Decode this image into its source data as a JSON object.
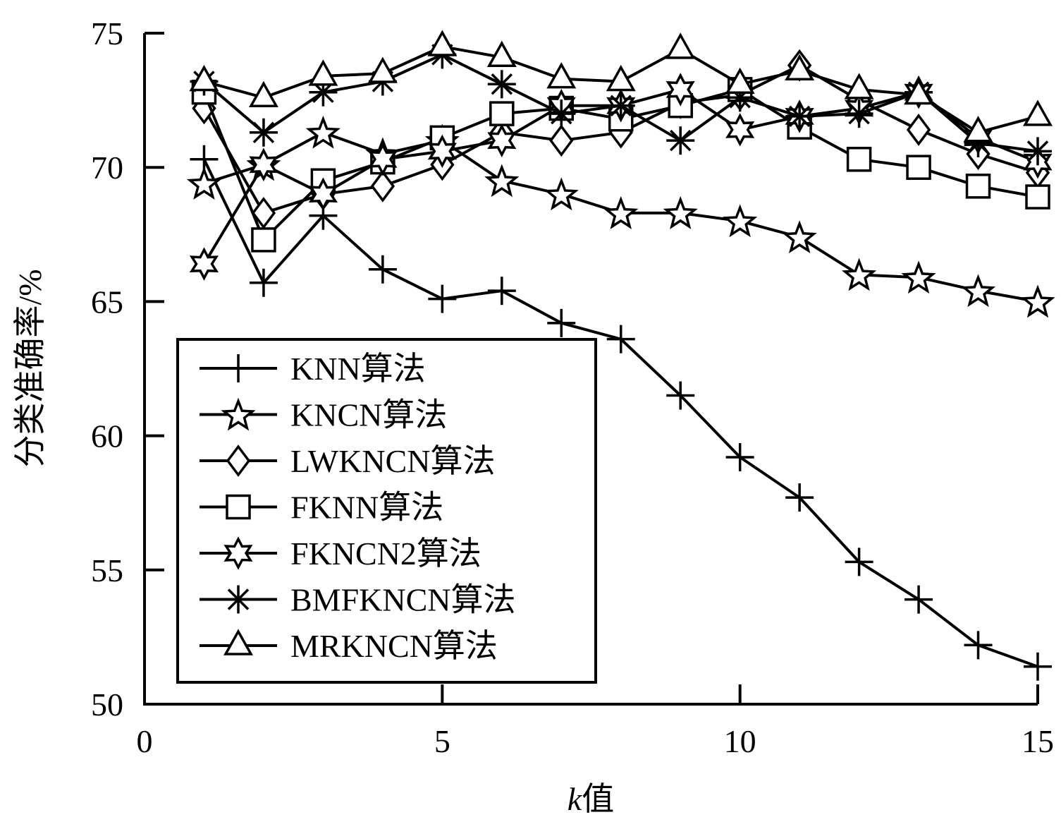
{
  "chart_data": {
    "type": "line",
    "title": "",
    "xlabel": "k值",
    "xlabel_italic_part": "k",
    "xlabel_rest": "值",
    "ylabel": "分类准确率/%",
    "xlim": [
      0,
      15
    ],
    "ylim": [
      50,
      75
    ],
    "xticks": [
      0,
      5,
      10,
      15
    ],
    "yticks": [
      50,
      55,
      60,
      65,
      70,
      75
    ],
    "grid": false,
    "legend_position": "bottom-left",
    "x": [
      1,
      2,
      3,
      4,
      5,
      6,
      7,
      8,
      9,
      10,
      11,
      12,
      13,
      14,
      15
    ],
    "series": [
      {
        "name": "KNN算法",
        "marker": "plus",
        "values": [
          70.3,
          65.7,
          68.2,
          66.2,
          65.1,
          65.4,
          64.2,
          63.6,
          61.5,
          59.2,
          57.7,
          55.3,
          53.9,
          52.2,
          51.4
        ]
      },
      {
        "name": "KNCN算法",
        "marker": "star5",
        "values": [
          69.4,
          70.1,
          71.3,
          70.5,
          71.0,
          69.5,
          69.0,
          68.3,
          68.3,
          68.0,
          67.4,
          66.0,
          65.9,
          65.4,
          65.0
        ]
      },
      {
        "name": "LWKNCN算法",
        "marker": "diamond",
        "values": [
          72.2,
          68.3,
          69.0,
          69.3,
          70.1,
          71.3,
          71.0,
          71.3,
          72.4,
          72.7,
          73.8,
          72.5,
          71.4,
          70.5,
          69.8
        ]
      },
      {
        "name": "FKNN算法",
        "marker": "square",
        "values": [
          72.8,
          67.3,
          69.5,
          70.2,
          71.1,
          72.0,
          72.2,
          71.8,
          72.3,
          72.9,
          71.5,
          70.3,
          70.0,
          69.3,
          68.9
        ]
      },
      {
        "name": "FKNCN2算法",
        "marker": "star6",
        "values": [
          66.4,
          70.1,
          69.0,
          70.3,
          70.6,
          71.0,
          72.3,
          72.3,
          72.9,
          71.4,
          71.9,
          72.2,
          72.8,
          71.1,
          70.2
        ]
      },
      {
        "name": "BMFKNCN算法",
        "marker": "asterisk",
        "values": [
          73.2,
          71.3,
          72.8,
          73.2,
          74.2,
          73.1,
          72.0,
          72.3,
          71.0,
          72.6,
          71.9,
          72.0,
          72.8,
          70.9,
          70.6
        ]
      },
      {
        "name": "MRKNCN算法",
        "marker": "triangle",
        "values": [
          73.2,
          72.6,
          73.4,
          73.5,
          74.5,
          74.1,
          73.3,
          73.2,
          74.4,
          73.1,
          73.6,
          72.9,
          72.7,
          71.3,
          71.9
        ]
      }
    ]
  }
}
